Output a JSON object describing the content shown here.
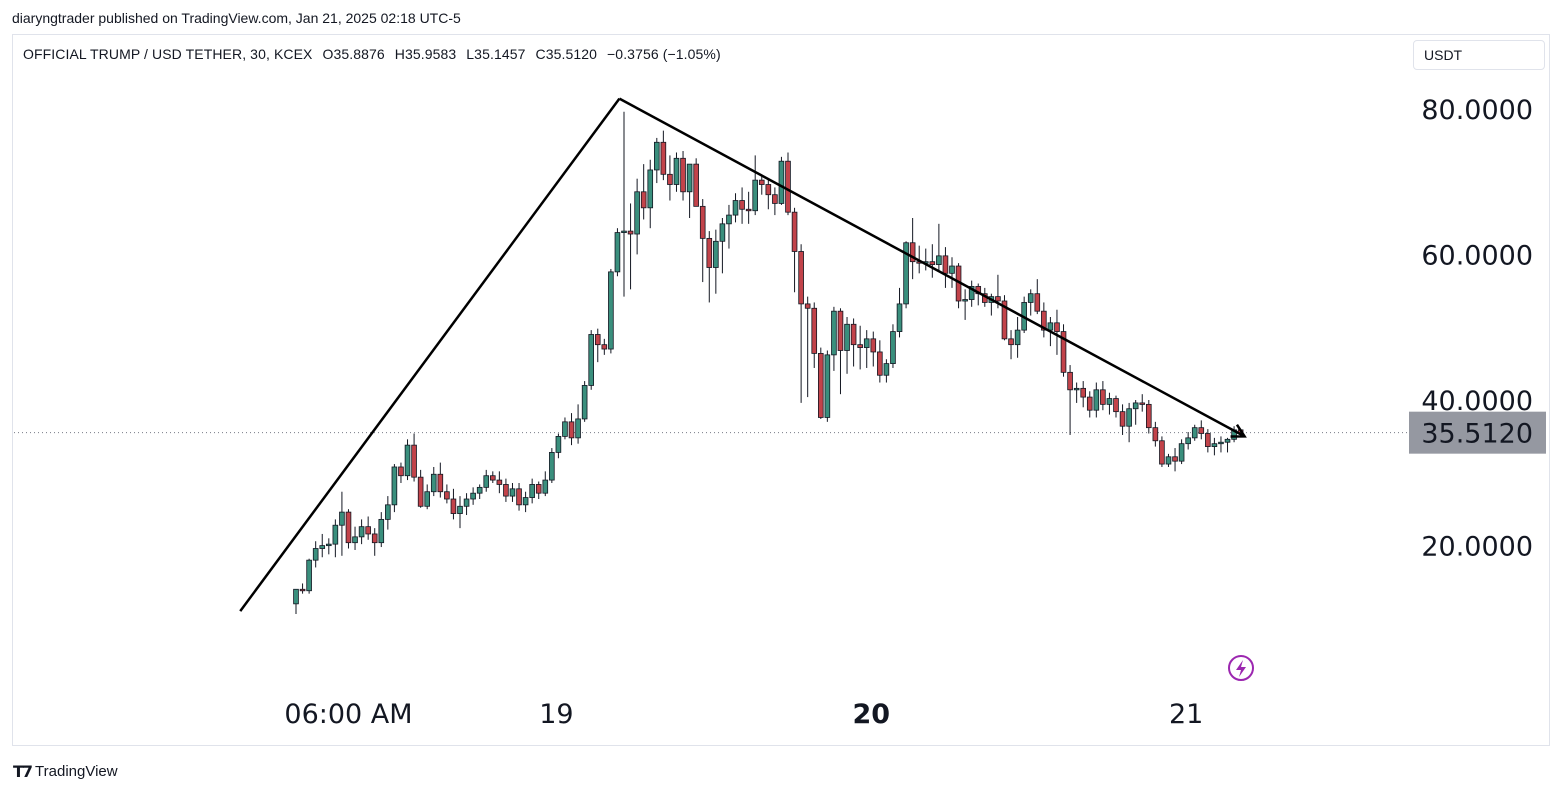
{
  "header": {
    "publisher": "diaryngtrader published on TradingView.com, Jan 21, 2025 02:18 UTC-5"
  },
  "symbol_bar": {
    "symbol": "OFFICIAL TRUMP / USD TETHER, 30, KCEX",
    "open": "O35.8876",
    "high": "H35.9583",
    "low": "L35.1457",
    "close": "C35.5120",
    "change": "−0.3756 (−1.05%)"
  },
  "currency_button": {
    "label": "USDT"
  },
  "footer": {
    "brand": "TradingView"
  },
  "colors": {
    "up": "#26a69a",
    "down": "#ef5350",
    "up_fill": "#3a8f7d",
    "down_fill": "#c2434a",
    "wick": "#131722",
    "price_label_bg": "#9598a1",
    "alert_icon": "#9c27b0"
  },
  "chart_data": {
    "type": "candlestick",
    "ylim": [
      6.0,
      92.0
    ],
    "y_ticks": [
      {
        "value": 20,
        "label": "20.0000"
      },
      {
        "value": 40,
        "label": "40.0000"
      },
      {
        "value": 60,
        "label": "60.0000"
      },
      {
        "value": 80,
        "label": "80.0000"
      }
    ],
    "x_ticks": [
      {
        "index": 8,
        "label": "06:00 AM",
        "bold": false
      },
      {
        "index": 40,
        "label": "19",
        "bold": false
      },
      {
        "index": 88,
        "label": "20",
        "bold": true
      },
      {
        "index": 136,
        "label": "21",
        "bold": false
      }
    ],
    "last_price": {
      "value": 35.512,
      "label": "35.5120"
    },
    "candles": [
      {
        "o": 12.0,
        "h": 14.0,
        "l": 10.6,
        "c": 14.0
      },
      {
        "o": 14.0,
        "h": 14.8,
        "l": 13.4,
        "c": 13.8
      },
      {
        "o": 13.8,
        "h": 18.2,
        "l": 13.4,
        "c": 18.0
      },
      {
        "o": 18.0,
        "h": 20.6,
        "l": 17.0,
        "c": 19.6
      },
      {
        "o": 19.6,
        "h": 21.6,
        "l": 18.4,
        "c": 20.0
      },
      {
        "o": 20.0,
        "h": 21.0,
        "l": 18.8,
        "c": 20.2
      },
      {
        "o": 20.2,
        "h": 23.6,
        "l": 18.4,
        "c": 22.8
      },
      {
        "o": 22.8,
        "h": 27.4,
        "l": 18.6,
        "c": 24.6
      },
      {
        "o": 24.6,
        "h": 25.0,
        "l": 19.6,
        "c": 20.4
      },
      {
        "o": 20.4,
        "h": 22.6,
        "l": 19.4,
        "c": 21.2
      },
      {
        "o": 21.2,
        "h": 23.6,
        "l": 20.2,
        "c": 22.6
      },
      {
        "o": 22.6,
        "h": 24.0,
        "l": 20.8,
        "c": 21.6
      },
      {
        "o": 21.6,
        "h": 22.4,
        "l": 18.6,
        "c": 20.4
      },
      {
        "o": 20.4,
        "h": 24.6,
        "l": 19.8,
        "c": 23.6
      },
      {
        "o": 23.6,
        "h": 26.8,
        "l": 22.2,
        "c": 25.6
      },
      {
        "o": 25.6,
        "h": 31.2,
        "l": 24.6,
        "c": 30.8
      },
      {
        "o": 30.8,
        "h": 31.4,
        "l": 28.6,
        "c": 29.6
      },
      {
        "o": 29.6,
        "h": 34.6,
        "l": 29.0,
        "c": 33.8
      },
      {
        "o": 33.8,
        "h": 35.4,
        "l": 28.8,
        "c": 29.4
      },
      {
        "o": 29.4,
        "h": 30.4,
        "l": 25.2,
        "c": 25.4
      },
      {
        "o": 25.4,
        "h": 28.4,
        "l": 25.0,
        "c": 27.4
      },
      {
        "o": 27.4,
        "h": 30.8,
        "l": 26.8,
        "c": 29.8
      },
      {
        "o": 29.8,
        "h": 31.4,
        "l": 26.6,
        "c": 27.4
      },
      {
        "o": 27.4,
        "h": 28.4,
        "l": 25.8,
        "c": 26.4
      },
      {
        "o": 26.4,
        "h": 27.8,
        "l": 23.6,
        "c": 24.4
      },
      {
        "o": 24.4,
        "h": 26.8,
        "l": 22.4,
        "c": 25.4
      },
      {
        "o": 25.4,
        "h": 27.2,
        "l": 24.2,
        "c": 26.4
      },
      {
        "o": 26.4,
        "h": 28.0,
        "l": 25.6,
        "c": 27.2
      },
      {
        "o": 27.2,
        "h": 28.4,
        "l": 26.4,
        "c": 28.0
      },
      {
        "o": 28.0,
        "h": 30.4,
        "l": 27.4,
        "c": 29.6
      },
      {
        "o": 29.6,
        "h": 30.2,
        "l": 28.6,
        "c": 29.0
      },
      {
        "o": 29.0,
        "h": 30.2,
        "l": 27.2,
        "c": 28.4
      },
      {
        "o": 28.4,
        "h": 29.2,
        "l": 26.0,
        "c": 26.8
      },
      {
        "o": 26.8,
        "h": 28.6,
        "l": 26.0,
        "c": 27.8
      },
      {
        "o": 27.8,
        "h": 28.6,
        "l": 24.8,
        "c": 25.6
      },
      {
        "o": 25.6,
        "h": 27.4,
        "l": 24.6,
        "c": 26.6
      },
      {
        "o": 26.6,
        "h": 29.2,
        "l": 25.8,
        "c": 28.4
      },
      {
        "o": 28.4,
        "h": 28.8,
        "l": 26.4,
        "c": 27.2
      },
      {
        "o": 27.2,
        "h": 30.2,
        "l": 26.8,
        "c": 29.0
      },
      {
        "o": 29.0,
        "h": 33.4,
        "l": 28.6,
        "c": 32.8
      },
      {
        "o": 32.8,
        "h": 35.4,
        "l": 32.0,
        "c": 35.0
      },
      {
        "o": 35.0,
        "h": 37.6,
        "l": 34.6,
        "c": 37.0
      },
      {
        "o": 37.0,
        "h": 38.2,
        "l": 33.8,
        "c": 34.8
      },
      {
        "o": 34.8,
        "h": 39.4,
        "l": 34.0,
        "c": 37.4
      },
      {
        "o": 37.4,
        "h": 42.6,
        "l": 37.0,
        "c": 42.0
      },
      {
        "o": 42.0,
        "h": 49.6,
        "l": 41.4,
        "c": 49.0
      },
      {
        "o": 49.0,
        "h": 49.8,
        "l": 45.2,
        "c": 47.6
      },
      {
        "o": 47.6,
        "h": 48.4,
        "l": 46.2,
        "c": 47.0
      },
      {
        "o": 47.0,
        "h": 58.0,
        "l": 46.4,
        "c": 57.6
      },
      {
        "o": 57.6,
        "h": 63.6,
        "l": 57.0,
        "c": 63.0
      },
      {
        "o": 63.0,
        "h": 79.6,
        "l": 54.2,
        "c": 63.2
      },
      {
        "o": 63.2,
        "h": 67.0,
        "l": 55.2,
        "c": 62.8
      },
      {
        "o": 62.8,
        "h": 70.4,
        "l": 60.0,
        "c": 68.6
      },
      {
        "o": 68.6,
        "h": 72.4,
        "l": 64.8,
        "c": 66.4
      },
      {
        "o": 66.4,
        "h": 73.0,
        "l": 63.6,
        "c": 71.6
      },
      {
        "o": 71.6,
        "h": 76.0,
        "l": 69.8,
        "c": 75.4
      },
      {
        "o": 75.4,
        "h": 77.0,
        "l": 70.2,
        "c": 71.0
      },
      {
        "o": 71.0,
        "h": 73.6,
        "l": 67.4,
        "c": 69.6
      },
      {
        "o": 69.6,
        "h": 74.0,
        "l": 68.6,
        "c": 73.2
      },
      {
        "o": 73.2,
        "h": 74.2,
        "l": 67.4,
        "c": 68.6
      },
      {
        "o": 68.6,
        "h": 72.4,
        "l": 65.0,
        "c": 72.4
      },
      {
        "o": 72.4,
        "h": 73.2,
        "l": 66.6,
        "c": 66.6
      },
      {
        "o": 66.6,
        "h": 67.6,
        "l": 56.2,
        "c": 62.2
      },
      {
        "o": 62.2,
        "h": 63.2,
        "l": 53.4,
        "c": 58.2
      },
      {
        "o": 58.2,
        "h": 63.4,
        "l": 54.6,
        "c": 61.8
      },
      {
        "o": 61.8,
        "h": 65.0,
        "l": 57.4,
        "c": 64.2
      },
      {
        "o": 64.2,
        "h": 66.8,
        "l": 60.8,
        "c": 65.4
      },
      {
        "o": 65.4,
        "h": 68.4,
        "l": 64.4,
        "c": 67.4
      },
      {
        "o": 67.4,
        "h": 69.2,
        "l": 64.2,
        "c": 66.2
      },
      {
        "o": 66.2,
        "h": 68.6,
        "l": 64.2,
        "c": 66.0
      },
      {
        "o": 66.0,
        "h": 73.6,
        "l": 65.4,
        "c": 70.2
      },
      {
        "o": 70.2,
        "h": 70.8,
        "l": 68.2,
        "c": 69.6
      },
      {
        "o": 69.6,
        "h": 70.4,
        "l": 66.2,
        "c": 68.2
      },
      {
        "o": 68.2,
        "h": 69.2,
        "l": 65.4,
        "c": 67.0
      },
      {
        "o": 67.0,
        "h": 73.4,
        "l": 66.8,
        "c": 72.8
      },
      {
        "o": 72.8,
        "h": 74.0,
        "l": 65.4,
        "c": 65.8
      },
      {
        "o": 65.8,
        "h": 66.4,
        "l": 54.8,
        "c": 60.4
      },
      {
        "o": 60.4,
        "h": 61.4,
        "l": 39.6,
        "c": 53.2
      },
      {
        "o": 53.2,
        "h": 54.2,
        "l": 40.4,
        "c": 52.6
      },
      {
        "o": 52.6,
        "h": 53.4,
        "l": 44.4,
        "c": 46.4
      },
      {
        "o": 46.4,
        "h": 47.2,
        "l": 37.4,
        "c": 37.6
      },
      {
        "o": 37.6,
        "h": 46.8,
        "l": 37.0,
        "c": 46.2
      },
      {
        "o": 46.2,
        "h": 52.8,
        "l": 44.0,
        "c": 52.2
      },
      {
        "o": 52.2,
        "h": 52.6,
        "l": 40.8,
        "c": 46.8
      },
      {
        "o": 46.8,
        "h": 51.4,
        "l": 43.6,
        "c": 50.4
      },
      {
        "o": 50.4,
        "h": 51.2,
        "l": 44.6,
        "c": 47.6
      },
      {
        "o": 47.6,
        "h": 50.2,
        "l": 44.2,
        "c": 47.2
      },
      {
        "o": 47.2,
        "h": 49.6,
        "l": 44.4,
        "c": 48.4
      },
      {
        "o": 48.4,
        "h": 49.4,
        "l": 44.6,
        "c": 46.6
      },
      {
        "o": 46.6,
        "h": 48.2,
        "l": 42.4,
        "c": 43.4
      },
      {
        "o": 43.4,
        "h": 45.6,
        "l": 42.4,
        "c": 45.0
      },
      {
        "o": 45.0,
        "h": 50.4,
        "l": 44.4,
        "c": 49.4
      },
      {
        "o": 49.4,
        "h": 55.4,
        "l": 48.6,
        "c": 53.2
      },
      {
        "o": 53.2,
        "h": 61.8,
        "l": 52.6,
        "c": 61.6
      },
      {
        "o": 61.6,
        "h": 65.0,
        "l": 56.6,
        "c": 59.0
      },
      {
        "o": 59.0,
        "h": 61.2,
        "l": 57.4,
        "c": 58.8
      },
      {
        "o": 58.8,
        "h": 60.8,
        "l": 57.8,
        "c": 59.0
      },
      {
        "o": 59.0,
        "h": 61.4,
        "l": 56.8,
        "c": 58.6
      },
      {
        "o": 58.6,
        "h": 64.2,
        "l": 57.6,
        "c": 59.8
      },
      {
        "o": 59.8,
        "h": 61.0,
        "l": 55.4,
        "c": 57.4
      },
      {
        "o": 57.4,
        "h": 59.6,
        "l": 55.4,
        "c": 58.4
      },
      {
        "o": 58.4,
        "h": 58.8,
        "l": 52.6,
        "c": 53.6
      },
      {
        "o": 53.6,
        "h": 55.2,
        "l": 51.0,
        "c": 53.8
      },
      {
        "o": 53.8,
        "h": 56.4,
        "l": 52.8,
        "c": 55.6
      },
      {
        "o": 55.6,
        "h": 56.0,
        "l": 53.0,
        "c": 54.6
      },
      {
        "o": 54.6,
        "h": 55.4,
        "l": 52.8,
        "c": 53.4
      },
      {
        "o": 53.4,
        "h": 54.6,
        "l": 51.6,
        "c": 54.2
      },
      {
        "o": 54.2,
        "h": 57.2,
        "l": 52.6,
        "c": 53.6
      },
      {
        "o": 53.6,
        "h": 54.4,
        "l": 48.2,
        "c": 48.4
      },
      {
        "o": 48.4,
        "h": 49.6,
        "l": 45.6,
        "c": 47.6
      },
      {
        "o": 47.6,
        "h": 51.4,
        "l": 45.8,
        "c": 49.6
      },
      {
        "o": 49.6,
        "h": 54.2,
        "l": 49.2,
        "c": 53.4
      },
      {
        "o": 53.4,
        "h": 55.2,
        "l": 51.6,
        "c": 54.6
      },
      {
        "o": 54.6,
        "h": 56.6,
        "l": 51.8,
        "c": 52.2
      },
      {
        "o": 52.2,
        "h": 53.4,
        "l": 48.6,
        "c": 49.6
      },
      {
        "o": 49.6,
        "h": 51.4,
        "l": 47.4,
        "c": 50.6
      },
      {
        "o": 50.6,
        "h": 52.4,
        "l": 46.2,
        "c": 49.4
      },
      {
        "o": 49.4,
        "h": 50.4,
        "l": 43.2,
        "c": 43.8
      },
      {
        "o": 43.8,
        "h": 44.8,
        "l": 35.2,
        "c": 41.4
      },
      {
        "o": 41.4,
        "h": 42.4,
        "l": 39.6,
        "c": 41.6
      },
      {
        "o": 41.6,
        "h": 42.6,
        "l": 39.0,
        "c": 40.4
      },
      {
        "o": 40.4,
        "h": 41.2,
        "l": 37.6,
        "c": 38.6
      },
      {
        "o": 38.6,
        "h": 42.4,
        "l": 37.6,
        "c": 41.4
      },
      {
        "o": 41.4,
        "h": 42.6,
        "l": 38.6,
        "c": 39.4
      },
      {
        "o": 39.4,
        "h": 41.0,
        "l": 38.0,
        "c": 40.2
      },
      {
        "o": 40.2,
        "h": 40.6,
        "l": 37.6,
        "c": 38.4
      },
      {
        "o": 38.4,
        "h": 39.4,
        "l": 35.2,
        "c": 36.4
      },
      {
        "o": 36.4,
        "h": 39.6,
        "l": 34.2,
        "c": 38.8
      },
      {
        "o": 38.8,
        "h": 40.0,
        "l": 36.6,
        "c": 39.6
      },
      {
        "o": 39.6,
        "h": 40.8,
        "l": 38.4,
        "c": 39.4
      },
      {
        "o": 39.4,
        "h": 40.0,
        "l": 35.4,
        "c": 36.2
      },
      {
        "o": 36.2,
        "h": 37.0,
        "l": 33.6,
        "c": 34.4
      },
      {
        "o": 34.4,
        "h": 35.0,
        "l": 30.8,
        "c": 31.2
      },
      {
        "o": 31.2,
        "h": 32.6,
        "l": 30.8,
        "c": 32.2
      },
      {
        "o": 32.2,
        "h": 33.4,
        "l": 30.2,
        "c": 31.6
      },
      {
        "o": 31.6,
        "h": 34.6,
        "l": 31.2,
        "c": 34.0
      },
      {
        "o": 34.0,
        "h": 35.6,
        "l": 33.2,
        "c": 34.8
      },
      {
        "o": 34.8,
        "h": 36.6,
        "l": 34.4,
        "c": 36.2
      },
      {
        "o": 36.2,
        "h": 37.2,
        "l": 34.6,
        "c": 35.4
      },
      {
        "o": 35.4,
        "h": 36.0,
        "l": 32.8,
        "c": 33.6
      },
      {
        "o": 33.6,
        "h": 34.8,
        "l": 32.4,
        "c": 34.0
      },
      {
        "o": 34.0,
        "h": 35.0,
        "l": 32.8,
        "c": 34.2
      },
      {
        "o": 34.2,
        "h": 34.8,
        "l": 32.8,
        "c": 34.6
      },
      {
        "o": 34.6,
        "h": 36.4,
        "l": 34.2,
        "c": 35.9
      },
      {
        "o": 35.9,
        "h": 36.0,
        "l": 35.1,
        "c": 35.5
      }
    ],
    "drawings": [
      {
        "type": "trend-line",
        "from": {
          "index": -8.5,
          "value": 11.0
        },
        "to": {
          "index": 49.3,
          "value": 81.4
        }
      },
      {
        "type": "trend-line-arrow",
        "from": {
          "index": 49.3,
          "value": 81.4
        },
        "to": {
          "index": 144.6,
          "value": 35.0
        }
      }
    ]
  }
}
